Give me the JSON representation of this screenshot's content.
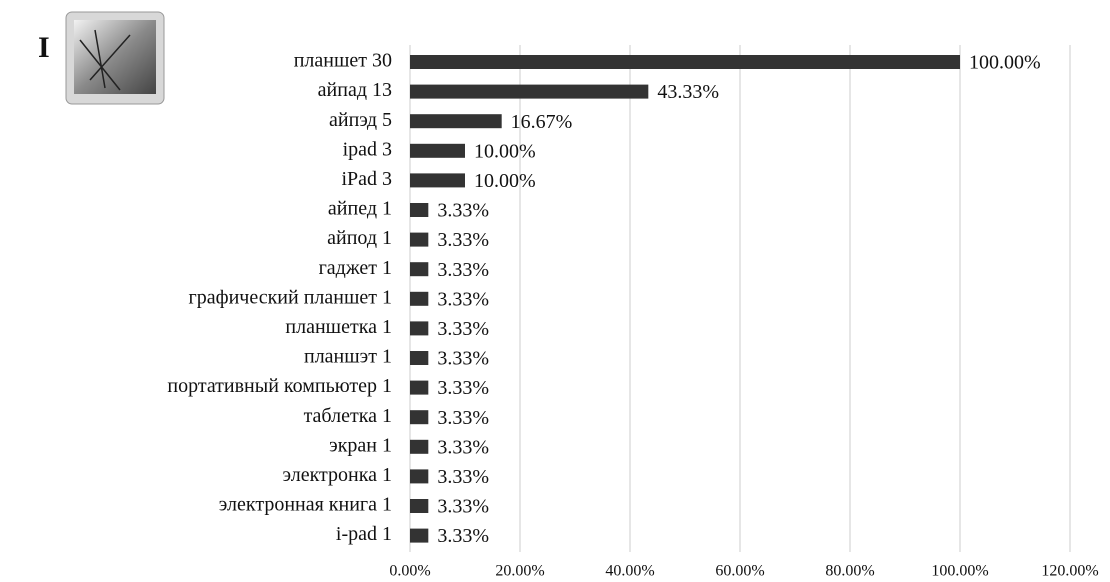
{
  "panel_label": "I",
  "chart_data": {
    "type": "barh",
    "categories": [
      "планшет 30",
      "айпад 13",
      "айпэд 5",
      "ipad 3",
      "iPad 3",
      "айпед 1",
      "айпод 1",
      "гаджет 1",
      "графический планшет 1",
      "планшетка 1",
      "планшэт 1",
      "портативный компьютер 1",
      "таблетка 1",
      "экран 1",
      "электронка 1",
      "электронная книга 1",
      "i-pad 1"
    ],
    "values": [
      100,
      43.33,
      16.67,
      10,
      10,
      3.33,
      3.33,
      3.33,
      3.33,
      3.33,
      3.33,
      3.33,
      3.33,
      3.33,
      3.33,
      3.33,
      3.33
    ],
    "value_labels": [
      "100.00%",
      "43.33%",
      "16.67%",
      "10.00%",
      "10.00%",
      "3.33%",
      "3.33%",
      "3.33%",
      "3.33%",
      "3.33%",
      "3.33%",
      "3.33%",
      "3.33%",
      "3.33%",
      "3.33%",
      "3.33%",
      "3.33%"
    ],
    "color": "#333333",
    "xlim": [
      0,
      120
    ],
    "xticks": [
      {
        "value": 0,
        "label": "0.00%"
      },
      {
        "value": 20,
        "label": "20.00%"
      },
      {
        "value": 40,
        "label": "40.00%"
      },
      {
        "value": 60,
        "label": "60.00%"
      },
      {
        "value": 80,
        "label": "80.00%"
      },
      {
        "value": 100,
        "label": "100.00%"
      },
      {
        "value": 120,
        "label": "120.00%"
      }
    ],
    "grid": true
  }
}
